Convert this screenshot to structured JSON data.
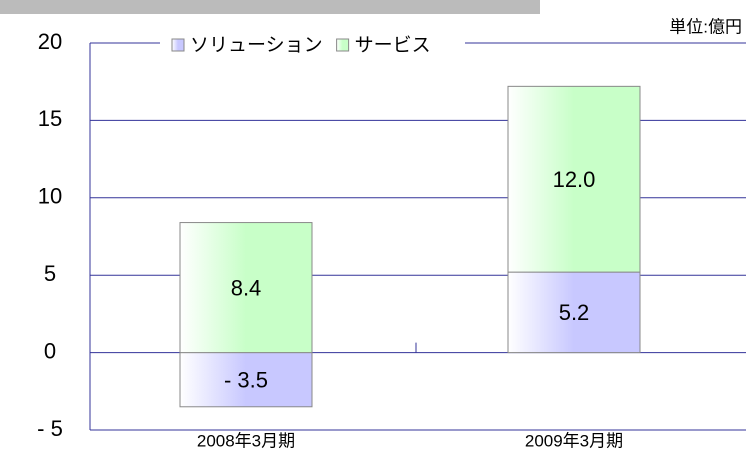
{
  "chart_data": {
    "type": "stacked_bar",
    "unit_label": "単位:億円",
    "categories": [
      "2008年3月期",
      "2009年3月期"
    ],
    "series": [
      {
        "name": "ソリューション",
        "color": "#c8c8ff",
        "values": [
          -3.5,
          5.2
        ],
        "value_labels": [
          "- 3.5",
          "5.2"
        ]
      },
      {
        "name": "サービス",
        "color": "#c8ffc8",
        "values": [
          8.4,
          12.0
        ],
        "value_labels": [
          "8.4",
          "12.0"
        ]
      }
    ],
    "ylim": [
      -5,
      20
    ],
    "yticks": [
      {
        "value": -5,
        "label": "- 5"
      },
      0,
      5,
      10,
      15,
      20
    ],
    "grid": true,
    "legend": "top"
  }
}
